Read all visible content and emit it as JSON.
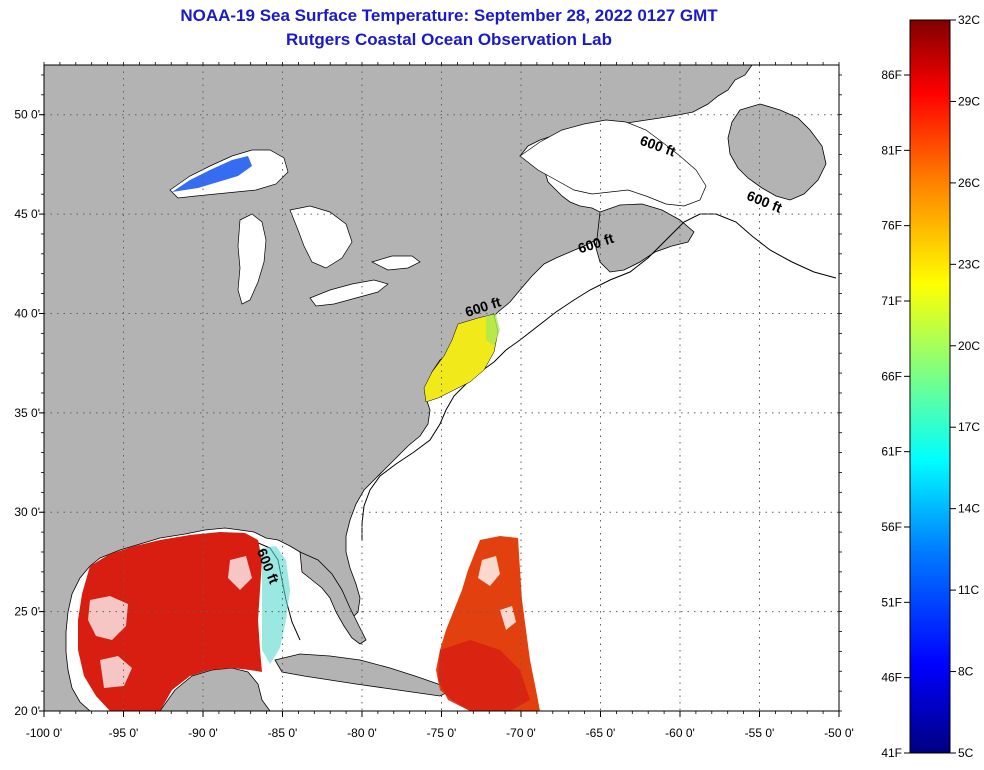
{
  "title": {
    "line1": "NOAA-19 Sea Surface Temperature:  September 28, 2022 0127 GMT",
    "line2": "Rutgers Coastal Ocean Observation Lab"
  },
  "map": {
    "lon_range": [
      -100,
      -50
    ],
    "lat_range": [
      20,
      52.5
    ],
    "x_ticks": [
      {
        "lon": -100,
        "label": "-100 0'"
      },
      {
        "lon": -95,
        "label": "-95 0'"
      },
      {
        "lon": -90,
        "label": "-90 0'"
      },
      {
        "lon": -85,
        "label": "-85 0'"
      },
      {
        "lon": -80,
        "label": "-80 0'"
      },
      {
        "lon": -75,
        "label": "-75 0'"
      },
      {
        "lon": -70,
        "label": "-70 0'"
      },
      {
        "lon": -65,
        "label": "-65 0'"
      },
      {
        "lon": -60,
        "label": "-60 0'"
      },
      {
        "lon": -55,
        "label": "-55 0'"
      },
      {
        "lon": -50,
        "label": "-50 0'"
      }
    ],
    "y_ticks": [
      {
        "lat": 20,
        "label": "20 0'"
      },
      {
        "lat": 25,
        "label": "25 0'"
      },
      {
        "lat": 30,
        "label": "30 0'"
      },
      {
        "lat": 35,
        "label": "35 0'"
      },
      {
        "lat": 40,
        "label": "40 0'"
      },
      {
        "lat": 45,
        "label": "45 0'"
      },
      {
        "lat": 50,
        "label": "50 0'"
      }
    ],
    "contour_labels": [
      {
        "text": "600 ft",
        "lon": -61.5,
        "lat": 48.2,
        "rotate": 20
      },
      {
        "text": "600 ft",
        "lon": -54.8,
        "lat": 45.4,
        "rotate": 22
      },
      {
        "text": "600 ft",
        "lon": -65.2,
        "lat": 43.3,
        "rotate": -18
      },
      {
        "text": "600 ft",
        "lon": -72.3,
        "lat": 40.1,
        "rotate": -18
      },
      {
        "text": "600 ft",
        "lon": -86.2,
        "lat": 27.2,
        "rotate": 68
      }
    ],
    "colors": {
      "land": "#b3b3b3",
      "ocean": "#ffffff",
      "warm_sst": "#d81e10",
      "mid_sst": "#f2e91b",
      "cold_sst": "#1f5cf0"
    }
  },
  "colorbar": {
    "fahrenheit": [
      "86F",
      "81F",
      "76F",
      "71F",
      "66F",
      "61F",
      "56F",
      "51F",
      "46F",
      "41F"
    ],
    "celsius": [
      "32C",
      "29C",
      "26C",
      "23C",
      "20C",
      "17C",
      "14C",
      "11C",
      "8C",
      "5C"
    ],
    "stops": [
      "#000080",
      "#0000ff",
      "#0080ff",
      "#00ffff",
      "#80ff80",
      "#ffff00",
      "#ff8000",
      "#ff0000",
      "#800000"
    ]
  }
}
